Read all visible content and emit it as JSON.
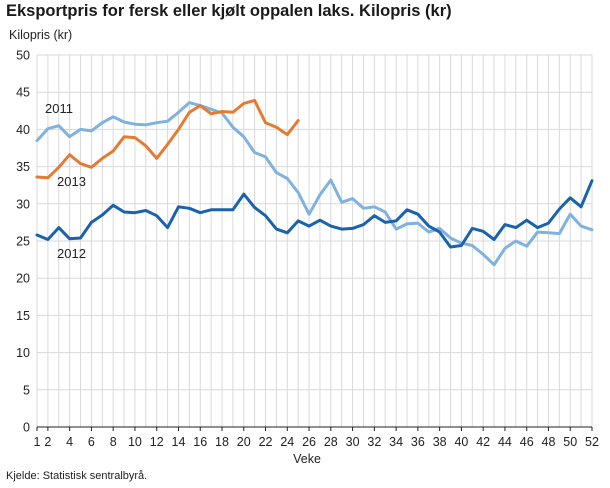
{
  "title": "Eksportpris for fersk eller kjølt oppalen laks. Kilopris (kr)",
  "source": "Kjelde: Statistisk sentralbyrå.",
  "chart_data": {
    "type": "line",
    "ylabel": "Kilopris (kr)",
    "xlabel": "Veke",
    "ylim": [
      0,
      50
    ],
    "yticks": [
      0,
      5,
      10,
      15,
      20,
      25,
      30,
      35,
      40,
      45,
      50
    ],
    "xlim": [
      1,
      52
    ],
    "xticks": [
      1,
      2,
      4,
      6,
      8,
      10,
      12,
      14,
      16,
      18,
      20,
      22,
      24,
      26,
      28,
      30,
      32,
      34,
      36,
      38,
      40,
      42,
      44,
      46,
      48,
      50,
      52
    ],
    "grid": "vertical and horizontal",
    "series": [
      {
        "name": "2011",
        "color": "#7fb2df",
        "x": [
          1,
          2,
          3,
          4,
          5,
          6,
          7,
          8,
          9,
          10,
          11,
          12,
          13,
          14,
          15,
          16,
          17,
          18,
          19,
          20,
          21,
          22,
          23,
          24,
          25,
          26,
          27,
          28,
          29,
          30,
          31,
          32,
          33,
          34,
          35,
          36,
          37,
          38,
          39,
          40,
          41,
          42,
          43,
          44,
          45,
          46,
          47,
          48,
          49,
          50,
          51,
          52
        ],
        "values": [
          38.5,
          40.1,
          40.5,
          39.0,
          40.0,
          39.8,
          40.9,
          41.7,
          41.0,
          40.7,
          40.6,
          40.9,
          41.1,
          42.3,
          43.6,
          43.2,
          42.7,
          42.2,
          40.3,
          39.0,
          36.9,
          36.3,
          34.2,
          33.4,
          31.5,
          28.6,
          31.2,
          33.2,
          30.2,
          30.7,
          29.4,
          29.6,
          28.9,
          26.6,
          27.3,
          27.4,
          26.2,
          26.7,
          25.4,
          24.7,
          24.4,
          23.2,
          21.8,
          24.0,
          25.0,
          24.3,
          26.2,
          26.1,
          26.0,
          28.6,
          27.0,
          26.5
        ]
      },
      {
        "name": "2012",
        "color": "#1a63ac",
        "x": [
          1,
          2,
          3,
          4,
          5,
          6,
          7,
          8,
          9,
          10,
          11,
          12,
          13,
          14,
          15,
          16,
          17,
          18,
          19,
          20,
          21,
          22,
          23,
          24,
          25,
          26,
          27,
          28,
          29,
          30,
          31,
          32,
          33,
          34,
          35,
          36,
          37,
          38,
          39,
          40,
          41,
          42,
          43,
          44,
          45,
          46,
          47,
          48,
          49,
          50,
          51,
          52
        ],
        "values": [
          25.8,
          25.2,
          26.8,
          25.3,
          25.4,
          27.5,
          28.5,
          29.8,
          28.9,
          28.8,
          29.1,
          28.4,
          26.8,
          29.6,
          29.4,
          28.8,
          29.2,
          29.2,
          29.2,
          31.3,
          29.5,
          28.4,
          26.6,
          26.1,
          27.7,
          27.0,
          27.8,
          27.0,
          26.6,
          26.7,
          27.2,
          28.4,
          27.5,
          27.7,
          29.2,
          28.6,
          27.0,
          26.2,
          24.2,
          24.4,
          26.7,
          26.3,
          25.2,
          27.2,
          26.8,
          27.8,
          26.8,
          27.4,
          29.3,
          30.8,
          29.6,
          33.1
        ]
      },
      {
        "name": "2013",
        "color": "#e57b33",
        "x": [
          1,
          2,
          3,
          4,
          5,
          6,
          7,
          8,
          9,
          10,
          11,
          12,
          13,
          14,
          15,
          16,
          17,
          18,
          19,
          20,
          21,
          22,
          23,
          24,
          25
        ],
        "values": [
          33.6,
          33.5,
          34.9,
          36.6,
          35.4,
          34.9,
          36.1,
          37.1,
          39.0,
          38.9,
          37.8,
          36.1,
          38.0,
          40.0,
          42.3,
          43.2,
          42.1,
          42.4,
          42.3,
          43.5,
          43.9,
          40.9,
          40.3,
          39.3,
          41.2
        ]
      }
    ],
    "series_labels": [
      "2011",
      "2013",
      "2012"
    ]
  }
}
